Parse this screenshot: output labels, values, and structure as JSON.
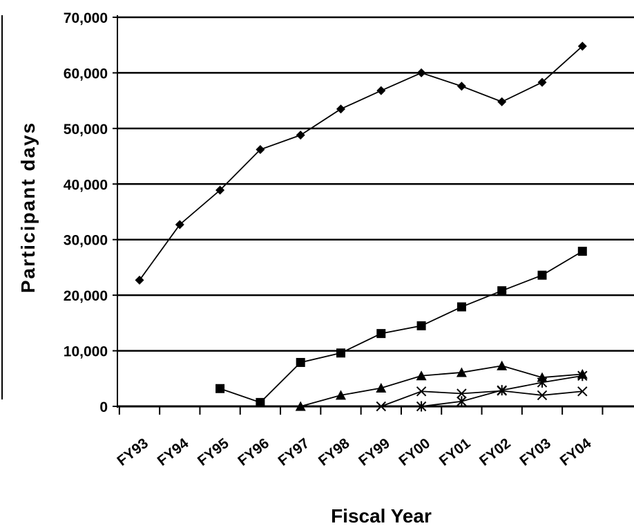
{
  "chart_data": {
    "type": "line",
    "title": "",
    "xlabel": "Fiscal Year",
    "ylabel": "Participant days",
    "categories": [
      "FY93",
      "FY94",
      "FY95",
      "FY96",
      "FY97",
      "FY98",
      "FY99",
      "FY00",
      "FY01",
      "FY02",
      "FY03",
      "FY04"
    ],
    "ylim": [
      0,
      70000
    ],
    "yticks": [
      0,
      10000,
      20000,
      30000,
      40000,
      50000,
      60000,
      70000
    ],
    "ytick_labels": [
      "0",
      "10,000",
      "20,000",
      "30,000",
      "40,000",
      "50,000",
      "60,000",
      "70,000"
    ],
    "grid": "horizontal",
    "legend": "none",
    "series": [
      {
        "marker": "diamond",
        "color": "#000000",
        "values": [
          22700,
          32700,
          38900,
          46200,
          48800,
          53500,
          56800,
          60000,
          57600,
          54800,
          58300,
          64800
        ]
      },
      {
        "marker": "square",
        "color": "#000000",
        "values": [
          null,
          null,
          3200,
          700,
          7900,
          9600,
          13100,
          14500,
          17900,
          20800,
          23600,
          27900
        ]
      },
      {
        "marker": "triangle",
        "color": "#000000",
        "values": [
          null,
          null,
          null,
          null,
          0,
          2000,
          3300,
          5500,
          6100,
          7300,
          5200,
          5800
        ]
      },
      {
        "marker": "x",
        "color": "#000000",
        "values": [
          null,
          null,
          null,
          null,
          null,
          null,
          0,
          2700,
          2300,
          2800,
          2000,
          2700
        ]
      },
      {
        "marker": "star",
        "color": "#000000",
        "values": [
          null,
          null,
          null,
          null,
          null,
          null,
          null,
          0,
          900,
          2900,
          4300,
          5500
        ]
      }
    ]
  }
}
